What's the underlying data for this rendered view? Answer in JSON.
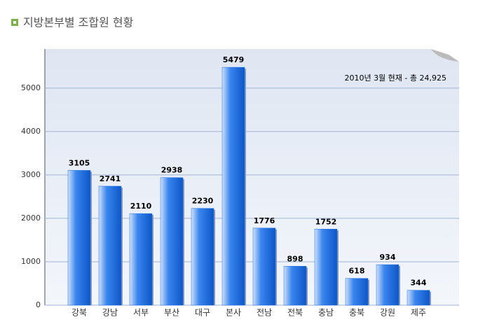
{
  "chart_data": {
    "type": "bar",
    "title": "지방본부별 조합원 현황",
    "annotation": "2010년 3월 현재 - 총 24,925",
    "categories": [
      "강북",
      "강남",
      "서부",
      "부산",
      "대구",
      "본사",
      "전남",
      "전북",
      "충남",
      "충북",
      "강원",
      "제주"
    ],
    "values": [
      3105,
      2741,
      2110,
      2938,
      2230,
      5479,
      1776,
      898,
      1752,
      618,
      934,
      344
    ],
    "color": "#1a6ee0",
    "ylim": [
      0,
      5900
    ],
    "yticks": [
      0,
      1000,
      2000,
      3000,
      4000,
      5000
    ],
    "grid": true
  }
}
